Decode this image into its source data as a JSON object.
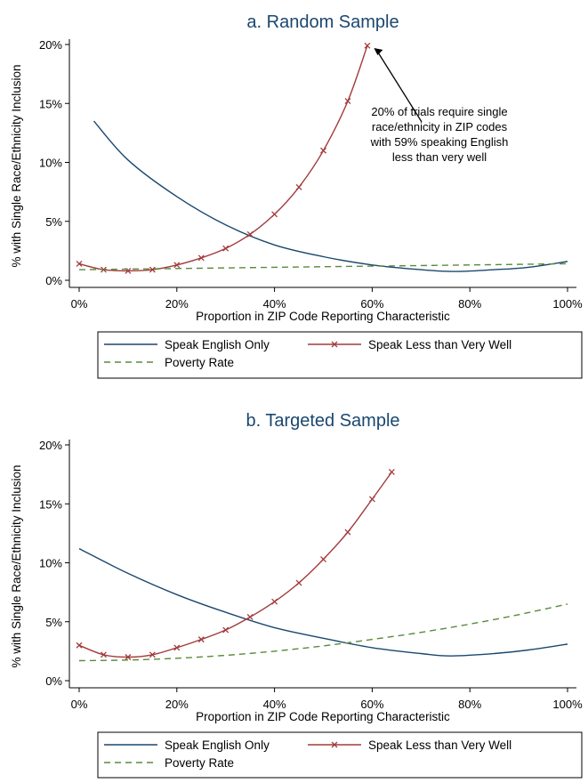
{
  "chart_data": [
    {
      "type": "line",
      "title": "a. Random Sample",
      "xlabel": "Proportion in ZIP Code Reporting Characteristic",
      "ylabel": "% with Single Race/Ethnicity Inclusion",
      "xlim": [
        0,
        100
      ],
      "ylim": [
        0,
        20
      ],
      "x_ticks": [
        "0%",
        "20%",
        "40%",
        "60%",
        "80%",
        "100%"
      ],
      "y_ticks": [
        "0%",
        "5%",
        "10%",
        "15%",
        "20%"
      ],
      "grid": false,
      "legend": "bottom",
      "series": [
        {
          "name": "Speak English Only",
          "style": "solid",
          "color": "#1a476f",
          "x": [
            3,
            10,
            20,
            30,
            40,
            50,
            60,
            70,
            77,
            85,
            92,
            100
          ],
          "y": [
            13.5,
            10.2,
            7.1,
            4.7,
            3.0,
            2.0,
            1.3,
            0.9,
            0.75,
            0.9,
            1.1,
            1.6
          ]
        },
        {
          "name": "Speak Less than Very Well",
          "style": "solid-x-markers",
          "color": "#a23b3b",
          "x": [
            0,
            5,
            10,
            15,
            20,
            25,
            30,
            35,
            40,
            45,
            50,
            55,
            59
          ],
          "y": [
            1.4,
            0.9,
            0.8,
            0.9,
            1.3,
            1.9,
            2.7,
            3.9,
            5.6,
            7.9,
            11.0,
            15.2,
            19.9
          ]
        },
        {
          "name": "Poverty Rate",
          "style": "dashed",
          "color": "#5b8a3a",
          "x": [
            0,
            20,
            40,
            60,
            80,
            100
          ],
          "y": [
            0.9,
            1.0,
            1.1,
            1.2,
            1.3,
            1.4
          ]
        }
      ],
      "annotation": {
        "lines": [
          "20% of trials require single",
          "race/ethnicity in ZIP codes",
          "with 59% speaking English",
          "less than very well"
        ],
        "points_to": [
          60,
          20
        ]
      }
    },
    {
      "type": "line",
      "title": "b. Targeted Sample",
      "xlabel": "Proportion in ZIP Code Reporting Characteristic",
      "ylabel": "% with Single Race/Ethnicity Inclusion",
      "xlim": [
        0,
        100
      ],
      "ylim": [
        0,
        20
      ],
      "x_ticks": [
        "0%",
        "20%",
        "40%",
        "60%",
        "80%",
        "100%"
      ],
      "y_ticks": [
        "0%",
        "5%",
        "10%",
        "15%",
        "20%"
      ],
      "grid": false,
      "legend": "bottom",
      "series": [
        {
          "name": "Speak English Only",
          "style": "solid",
          "color": "#1a476f",
          "x": [
            0,
            10,
            20,
            30,
            40,
            50,
            60,
            70,
            76,
            85,
            92,
            100
          ],
          "y": [
            11.2,
            9.1,
            7.3,
            5.8,
            4.5,
            3.6,
            2.8,
            2.3,
            2.1,
            2.3,
            2.6,
            3.1
          ]
        },
        {
          "name": "Speak Less than Very Well",
          "style": "solid-x-markers",
          "color": "#a23b3b",
          "x": [
            0,
            5,
            10,
            15,
            20,
            25,
            30,
            35,
            40,
            45,
            50,
            55,
            60,
            64
          ],
          "y": [
            3.0,
            2.2,
            2.0,
            2.2,
            2.8,
            3.5,
            4.3,
            5.4,
            6.7,
            8.3,
            10.3,
            12.6,
            15.4,
            17.7
          ]
        },
        {
          "name": "Poverty Rate",
          "style": "dashed",
          "color": "#5b8a3a",
          "x": [
            0,
            10,
            20,
            30,
            40,
            50,
            60,
            70,
            80,
            90,
            100
          ],
          "y": [
            1.7,
            1.75,
            1.9,
            2.15,
            2.5,
            2.95,
            3.5,
            4.1,
            4.8,
            5.6,
            6.5
          ]
        }
      ]
    }
  ]
}
